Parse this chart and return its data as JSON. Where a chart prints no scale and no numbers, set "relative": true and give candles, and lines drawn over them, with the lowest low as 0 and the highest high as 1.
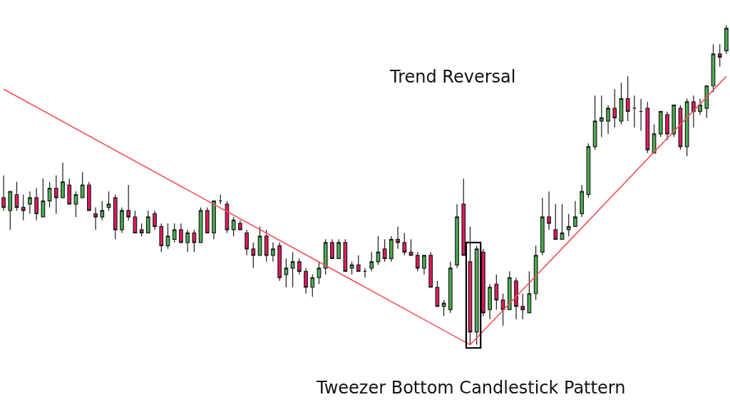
{
  "chart_data": {
    "type": "candlestick",
    "relative": true,
    "tick_labels": false,
    "annotations": [
      "Trend Reversal",
      "Tweezer Bottom Candlestick Pattern"
    ],
    "categories": [
      null,
      null,
      null,
      null,
      null,
      null,
      null,
      null,
      null,
      null,
      null,
      null,
      null,
      null,
      null,
      null,
      null,
      null,
      null,
      null,
      null,
      null,
      null,
      null,
      null,
      null,
      null,
      null,
      null,
      null,
      null,
      null,
      null,
      null,
      null,
      null,
      null,
      null,
      null,
      null,
      null,
      null,
      null,
      null,
      null,
      null,
      null,
      null,
      null,
      null,
      null,
      null,
      null,
      null,
      null,
      null,
      null,
      null,
      null,
      null,
      null,
      null,
      null,
      null,
      null,
      null,
      null,
      null,
      null,
      null,
      null,
      null,
      null,
      null,
      null,
      null,
      null,
      null,
      null,
      null,
      null,
      null,
      null,
      null,
      null,
      null,
      null,
      null,
      null,
      null,
      null,
      null,
      null,
      null,
      null,
      null,
      null,
      null,
      null,
      null,
      null,
      null,
      null,
      null,
      null,
      null,
      null,
      null,
      null,
      null,
      null
    ],
    "ohlc": [
      [
        0.46,
        0.53,
        0.42,
        0.43
      ],
      [
        0.42,
        0.48,
        0.36,
        0.48
      ],
      [
        0.47,
        0.51,
        0.42,
        0.43
      ],
      [
        0.43,
        0.47,
        0.39,
        0.42
      ],
      [
        0.44,
        0.48,
        0.41,
        0.46
      ],
      [
        0.46,
        0.49,
        0.39,
        0.41
      ],
      [
        0.4,
        0.52,
        0.4,
        0.45
      ],
      [
        0.45,
        0.51,
        0.43,
        0.49
      ],
      [
        0.49,
        0.53,
        0.41,
        0.46
      ],
      [
        0.46,
        0.57,
        0.46,
        0.51
      ],
      [
        0.5,
        0.52,
        0.44,
        0.44
      ],
      [
        0.44,
        0.48,
        0.4,
        0.47
      ],
      [
        0.46,
        0.54,
        0.46,
        0.5
      ],
      [
        0.5,
        0.51,
        0.42,
        0.42
      ],
      [
        0.41,
        0.43,
        0.36,
        0.4
      ],
      [
        0.4,
        0.45,
        0.39,
        0.42
      ],
      [
        0.43,
        0.48,
        0.42,
        0.44
      ],
      [
        0.46,
        0.47,
        0.33,
        0.36
      ],
      [
        0.36,
        0.43,
        0.35,
        0.42
      ],
      [
        0.42,
        0.5,
        0.39,
        0.4
      ],
      [
        0.4,
        0.42,
        0.35,
        0.35
      ],
      [
        0.36,
        0.38,
        0.34,
        0.35
      ],
      [
        0.35,
        0.42,
        0.35,
        0.4
      ],
      [
        0.41,
        0.42,
        0.36,
        0.37
      ],
      [
        0.37,
        0.38,
        0.29,
        0.31
      ],
      [
        0.31,
        0.38,
        0.3,
        0.34
      ],
      [
        0.33,
        0.38,
        0.32,
        0.36
      ],
      [
        0.36,
        0.38,
        0.32,
        0.32
      ],
      [
        0.32,
        0.36,
        0.29,
        0.35
      ],
      [
        0.35,
        0.36,
        0.29,
        0.32
      ],
      [
        0.32,
        0.43,
        0.32,
        0.42
      ],
      [
        0.42,
        0.43,
        0.35,
        0.35
      ],
      [
        0.35,
        0.45,
        0.33,
        0.45
      ],
      [
        0.45,
        0.47,
        0.44,
        0.45
      ],
      [
        0.44,
        0.45,
        0.35,
        0.36
      ],
      [
        0.36,
        0.4,
        0.34,
        0.39
      ],
      [
        0.38,
        0.39,
        0.36,
        0.36
      ],
      [
        0.35,
        0.36,
        0.28,
        0.3
      ],
      [
        0.3,
        0.32,
        0.24,
        0.28
      ],
      [
        0.28,
        0.37,
        0.28,
        0.34
      ],
      [
        0.34,
        0.36,
        0.26,
        0.28
      ],
      [
        0.28,
        0.32,
        0.26,
        0.3
      ],
      [
        0.31,
        0.32,
        0.2,
        0.21
      ],
      [
        0.22,
        0.27,
        0.18,
        0.24
      ],
      [
        0.24,
        0.29,
        0.18,
        0.26
      ],
      [
        0.26,
        0.27,
        0.22,
        0.23
      ],
      [
        0.23,
        0.24,
        0.16,
        0.18
      ],
      [
        0.18,
        0.22,
        0.15,
        0.21
      ],
      [
        0.21,
        0.26,
        0.19,
        0.24
      ],
      [
        0.24,
        0.33,
        0.22,
        0.32
      ],
      [
        0.32,
        0.33,
        0.27,
        0.27
      ],
      [
        0.27,
        0.33,
        0.27,
        0.32
      ],
      [
        0.32,
        0.33,
        0.23,
        0.23
      ],
      [
        0.24,
        0.26,
        0.22,
        0.25
      ],
      [
        0.25,
        0.28,
        0.23,
        0.23
      ],
      [
        0.23,
        0.24,
        0.21,
        0.23
      ],
      [
        0.24,
        0.29,
        0.23,
        0.26
      ],
      [
        0.26,
        0.34,
        0.25,
        0.29
      ],
      [
        0.3,
        0.33,
        0.26,
        0.27
      ],
      [
        0.27,
        0.34,
        0.26,
        0.33
      ],
      [
        0.33,
        0.37,
        0.3,
        0.32
      ],
      [
        0.32,
        0.35,
        0.28,
        0.29
      ],
      [
        0.29,
        0.33,
        0.28,
        0.28
      ],
      [
        0.28,
        0.29,
        0.23,
        0.24
      ],
      [
        0.24,
        0.28,
        0.22,
        0.28
      ],
      [
        0.28,
        0.29,
        0.18,
        0.18
      ],
      [
        0.18,
        0.2,
        0.12,
        0.12
      ],
      [
        0.12,
        0.14,
        0.09,
        0.13
      ],
      [
        0.11,
        0.26,
        0.1,
        0.24
      ],
      [
        0.25,
        0.44,
        0.24,
        0.4
      ],
      [
        0.44,
        0.52,
        0.28,
        0.28
      ],
      [
        0.26,
        0.37,
        0.0,
        0.04
      ],
      [
        0.04,
        0.31,
        0.0,
        0.3
      ],
      [
        0.29,
        0.3,
        0.09,
        0.1
      ],
      [
        0.11,
        0.19,
        0.08,
        0.18
      ],
      [
        0.19,
        0.22,
        0.11,
        0.14
      ],
      [
        0.14,
        0.16,
        0.06,
        0.11
      ],
      [
        0.11,
        0.23,
        0.11,
        0.21
      ],
      [
        0.2,
        0.21,
        0.08,
        0.12
      ],
      [
        0.12,
        0.16,
        0.08,
        0.11
      ],
      [
        0.1,
        0.23,
        0.1,
        0.16
      ],
      [
        0.16,
        0.31,
        0.14,
        0.28
      ],
      [
        0.29,
        0.46,
        0.28,
        0.4
      ],
      [
        0.4,
        0.48,
        0.36,
        0.38
      ],
      [
        0.36,
        0.44,
        0.33,
        0.33
      ],
      [
        0.33,
        0.44,
        0.33,
        0.35
      ],
      [
        0.36,
        0.41,
        0.34,
        0.37
      ],
      [
        0.37,
        0.45,
        0.37,
        0.4
      ],
      [
        0.41,
        0.5,
        0.4,
        0.48
      ],
      [
        0.47,
        0.63,
        0.46,
        0.62
      ],
      [
        0.62,
        0.78,
        0.61,
        0.7
      ],
      [
        0.7,
        0.78,
        0.65,
        0.71
      ],
      [
        0.7,
        0.75,
        0.66,
        0.74
      ],
      [
        0.74,
        0.8,
        0.68,
        0.71
      ],
      [
        0.7,
        0.82,
        0.69,
        0.77
      ],
      [
        0.77,
        0.84,
        0.7,
        0.73
      ],
      [
        0.74,
        0.78,
        0.68,
        0.74
      ],
      [
        0.73,
        0.77,
        0.67,
        0.73
      ],
      [
        0.74,
        0.76,
        0.6,
        0.61
      ],
      [
        0.6,
        0.69,
        0.6,
        0.66
      ],
      [
        0.66,
        0.73,
        0.65,
        0.73
      ],
      [
        0.72,
        0.73,
        0.64,
        0.66
      ],
      [
        0.66,
        0.75,
        0.65,
        0.75
      ],
      [
        0.74,
        0.75,
        0.61,
        0.62
      ],
      [
        0.62,
        0.77,
        0.59,
        0.76
      ],
      [
        0.76,
        0.78,
        0.68,
        0.73
      ],
      [
        0.73,
        0.77,
        0.72,
        0.75
      ],
      [
        0.74,
        0.81,
        0.71,
        0.81
      ],
      [
        0.81,
        0.94,
        0.79,
        0.91
      ],
      [
        0.91,
        0.94,
        0.87,
        0.9
      ],
      [
        0.92,
        1.0,
        0.91,
        0.99
      ]
    ],
    "colors": [
      "#e8195a",
      "#4caf50",
      "#e8195a",
      "#e8195a",
      "#4caf50",
      "#e8195a",
      "#4caf50",
      "#4caf50",
      "#e8195a",
      "#4caf50",
      "#e8195a",
      "#4caf50",
      "#4caf50",
      "#e8195a",
      "#e8195a",
      "#4caf50",
      "#4caf50",
      "#e8195a",
      "#4caf50",
      "#e8195a",
      "#e8195a",
      "#e8195a",
      "#4caf50",
      "#e8195a",
      "#e8195a",
      "#4caf50",
      "#4caf50",
      "#e8195a",
      "#4caf50",
      "#e8195a",
      "#4caf50",
      "#e8195a",
      "#4caf50",
      "#1a1a1a",
      "#e8195a",
      "#4caf50",
      "#e8195a",
      "#e8195a",
      "#e8195a",
      "#4caf50",
      "#e8195a",
      "#4caf50",
      "#e8195a",
      "#4caf50",
      "#4caf50",
      "#e8195a",
      "#e8195a",
      "#4caf50",
      "#4caf50",
      "#4caf50",
      "#e8195a",
      "#4caf50",
      "#e8195a",
      "#4caf50",
      "#e8195a",
      "#1a1a1a",
      "#4caf50",
      "#4caf50",
      "#e8195a",
      "#4caf50",
      "#e8195a",
      "#e8195a",
      "#e8195a",
      "#e8195a",
      "#4caf50",
      "#e8195a",
      "#e8195a",
      "#4caf50",
      "#4caf50",
      "#4caf50",
      "#e8195a",
      "#e8195a",
      "#4caf50",
      "#e8195a",
      "#4caf50",
      "#e8195a",
      "#e8195a",
      "#4caf50",
      "#e8195a",
      "#e8195a",
      "#4caf50",
      "#4caf50",
      "#4caf50",
      "#e8195a",
      "#e8195a",
      "#4caf50",
      "#4caf50",
      "#4caf50",
      "#4caf50",
      "#4caf50",
      "#4caf50",
      "#4caf50",
      "#4caf50",
      "#e8195a",
      "#4caf50",
      "#e8195a",
      "#1a1a1a",
      "#1a1a1a",
      "#e8195a",
      "#4caf50",
      "#4caf50",
      "#e8195a",
      "#4caf50",
      "#e8195a",
      "#4caf50",
      "#e8195a",
      "#4caf50",
      "#4caf50",
      "#4caf50",
      "#e8195a",
      "#4caf50"
    ],
    "series": [
      {
        "type": "line",
        "color": "#f4505a",
        "values": [
          0.8,
          null,
          null,
          null,
          null,
          null,
          null,
          null,
          null,
          null,
          null,
          null,
          null,
          null,
          null,
          null,
          null,
          null,
          null,
          null,
          null,
          null,
          null,
          null,
          null,
          null,
          null,
          null,
          null,
          null,
          null,
          null,
          null,
          null,
          null,
          null,
          null,
          null,
          null,
          null,
          null,
          null,
          null,
          null,
          null,
          null,
          null,
          null,
          null,
          null,
          null,
          null,
          null,
          null,
          null,
          null,
          null,
          null,
          null,
          null,
          null,
          null,
          null,
          null,
          null,
          null,
          null,
          null,
          null,
          null,
          null,
          0.0,
          null,
          null,
          null,
          null,
          null,
          null,
          null,
          null,
          null,
          null,
          null,
          null,
          null,
          null,
          null,
          null,
          null,
          null,
          null,
          null,
          null,
          null,
          null,
          null,
          null,
          null,
          null,
          null,
          null,
          null,
          null,
          null,
          null,
          null,
          null,
          null,
          null,
          null,
          0.84
        ]
      }
    ]
  }
}
